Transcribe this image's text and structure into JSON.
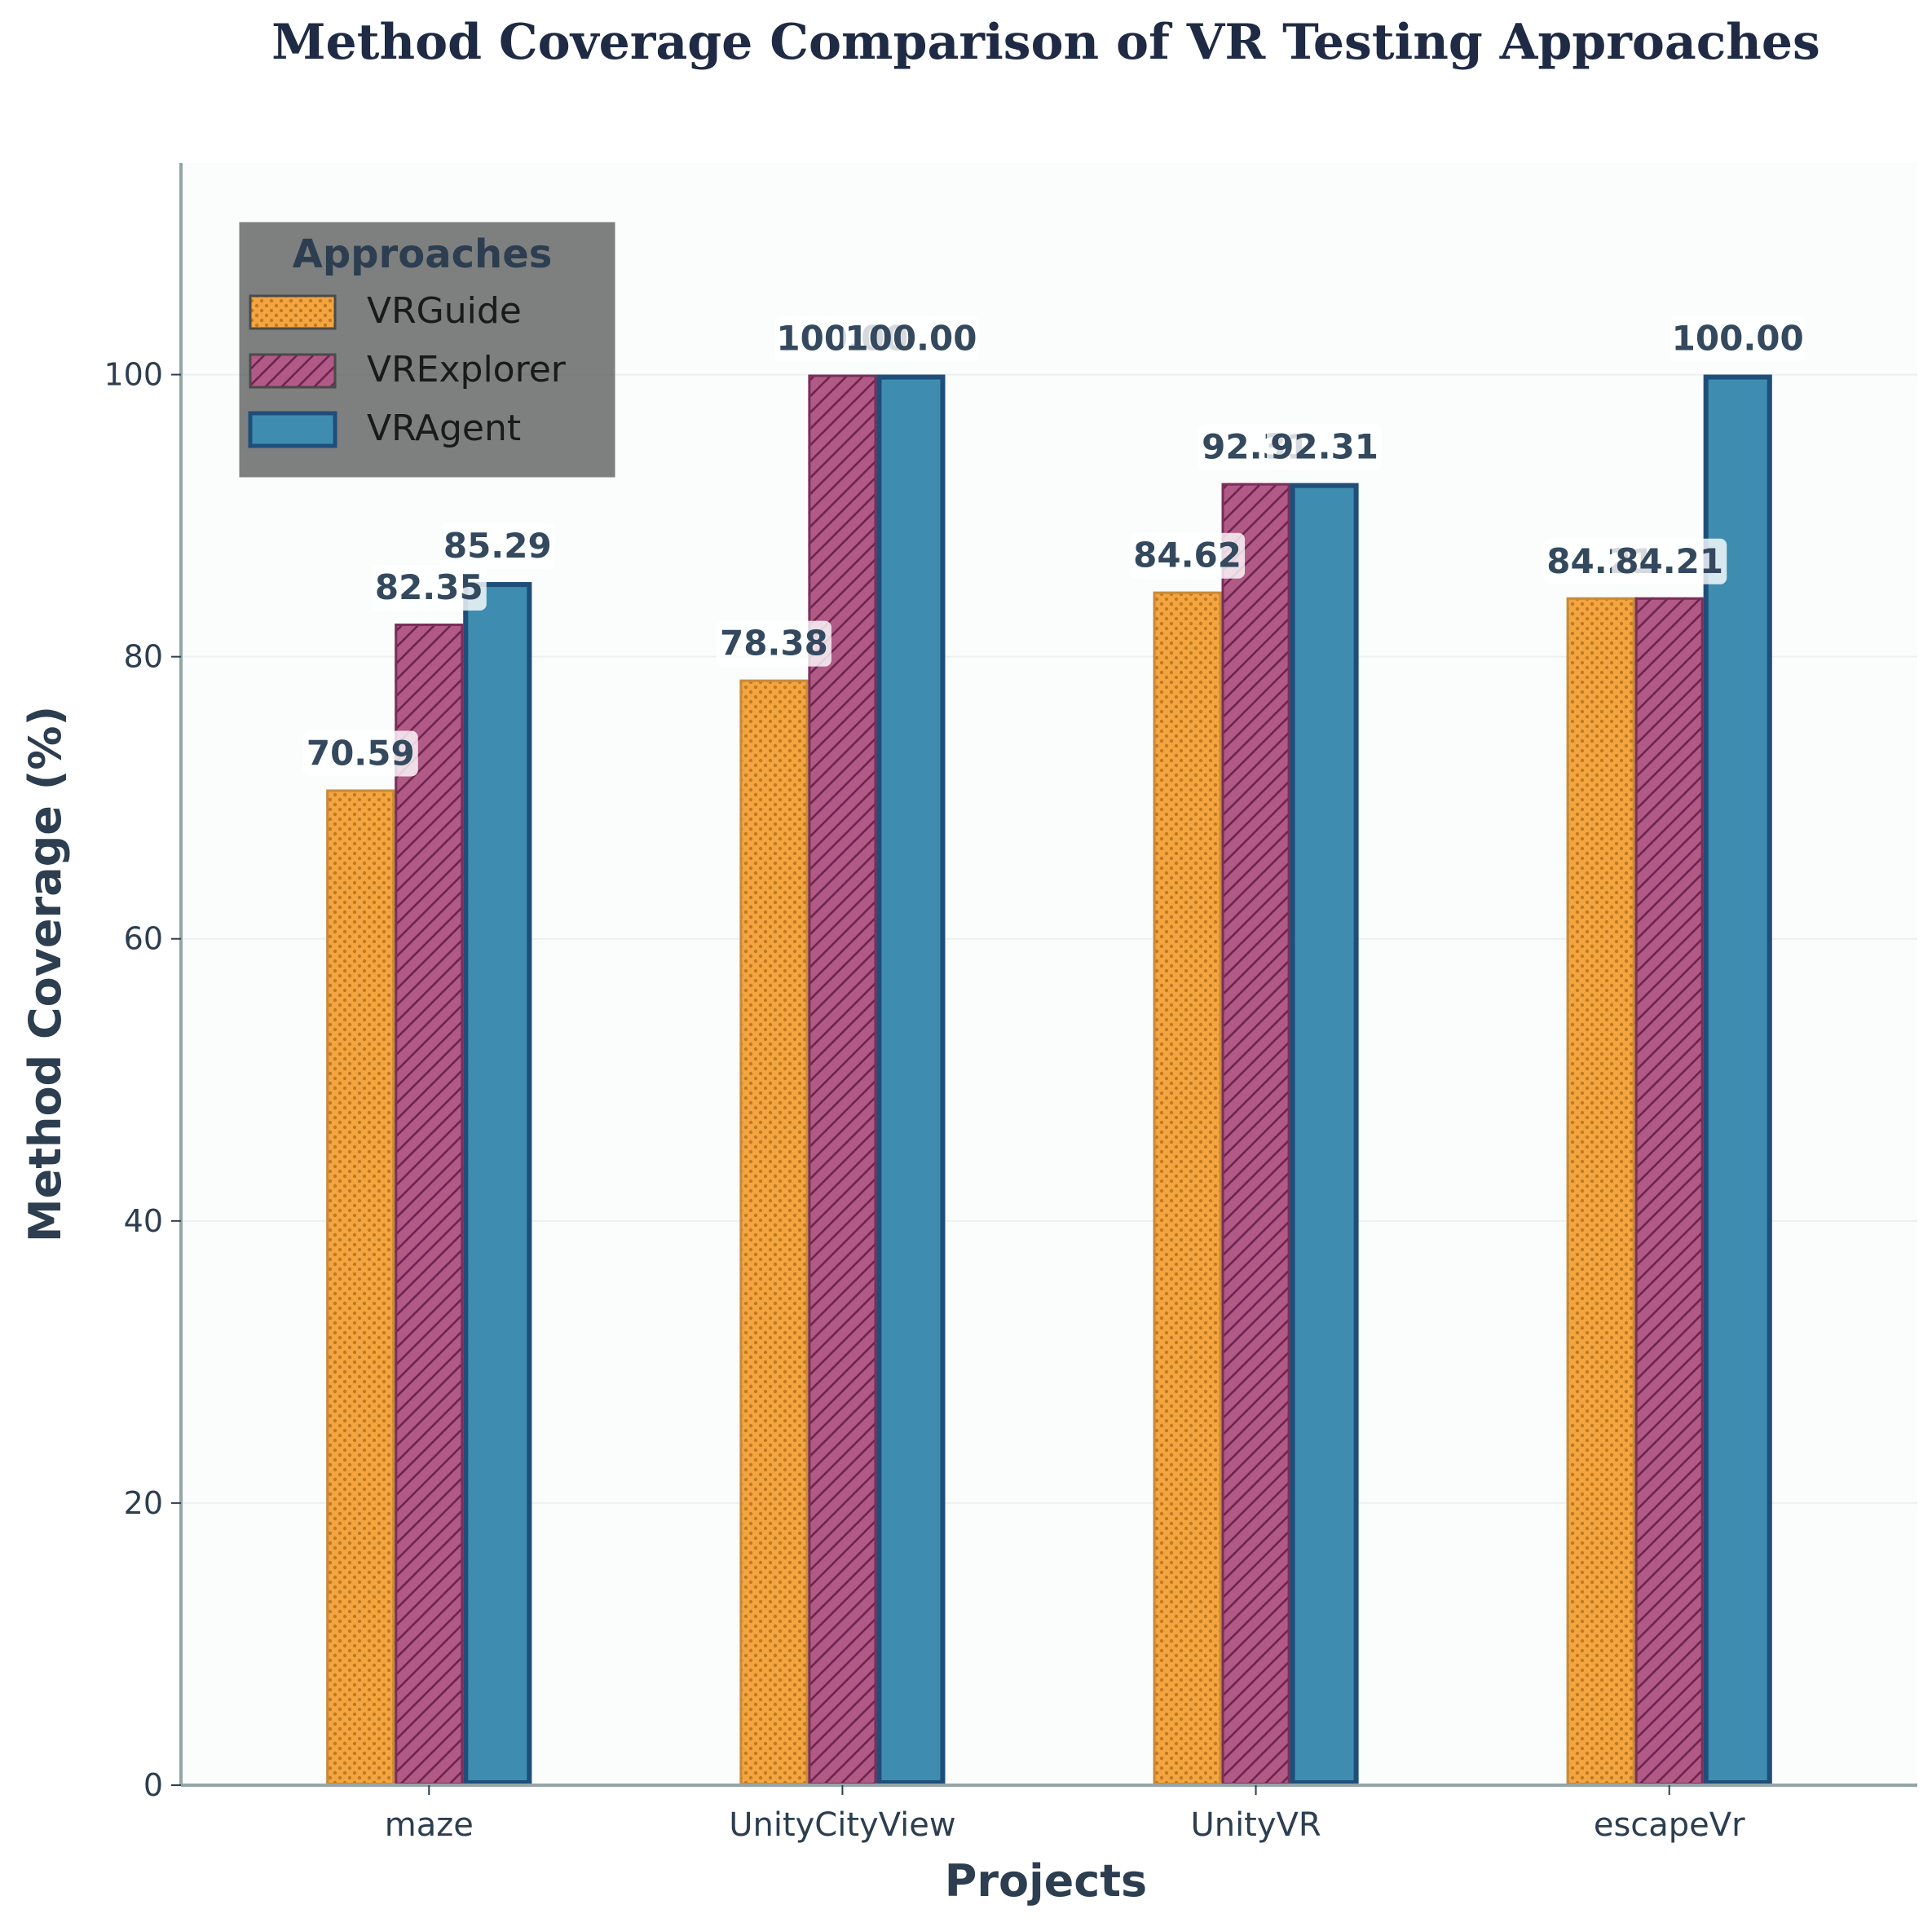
{
  "chart_data": {
    "type": "bar",
    "title": "Method Coverage Comparison of VR Testing Approaches",
    "xlabel": "Projects",
    "ylabel": "Method Coverage (%)",
    "ylim": [
      0,
      115
    ],
    "yticks": [
      0,
      20,
      40,
      60,
      80,
      100
    ],
    "ytick_labels": [
      "0",
      "20",
      "40",
      "60",
      "80",
      "100"
    ],
    "categories": [
      "maze",
      "UnityCityView",
      "UnityVR",
      "escapeVr"
    ],
    "legend_title": "Approaches",
    "legend_position": "top-left",
    "grid": true,
    "series": [
      {
        "name": "VRGuide",
        "values": [
          70.59,
          78.38,
          84.62,
          84.21
        ],
        "labels": [
          "70.59",
          "78.38",
          "84.62",
          "84.21"
        ],
        "color": "#f4a53f",
        "edge": "#c88a3a",
        "hatch": "dots"
      },
      {
        "name": "VRExplorer",
        "values": [
          82.35,
          100.0,
          92.31,
          84.21
        ],
        "labels": [
          "82.35",
          "100.00",
          "92.31",
          "84.21"
        ],
        "color": "#b05a85",
        "edge": "#7a2f5a",
        "hatch": "diagonal"
      },
      {
        "name": "VRAgent",
        "values": [
          85.29,
          100.0,
          92.31,
          100.0
        ],
        "labels": [
          "85.29",
          "100.00",
          "92.31",
          "100.00"
        ],
        "color": "#3e8db1",
        "edge": "#1f4e79",
        "hatch": "none"
      }
    ]
  }
}
